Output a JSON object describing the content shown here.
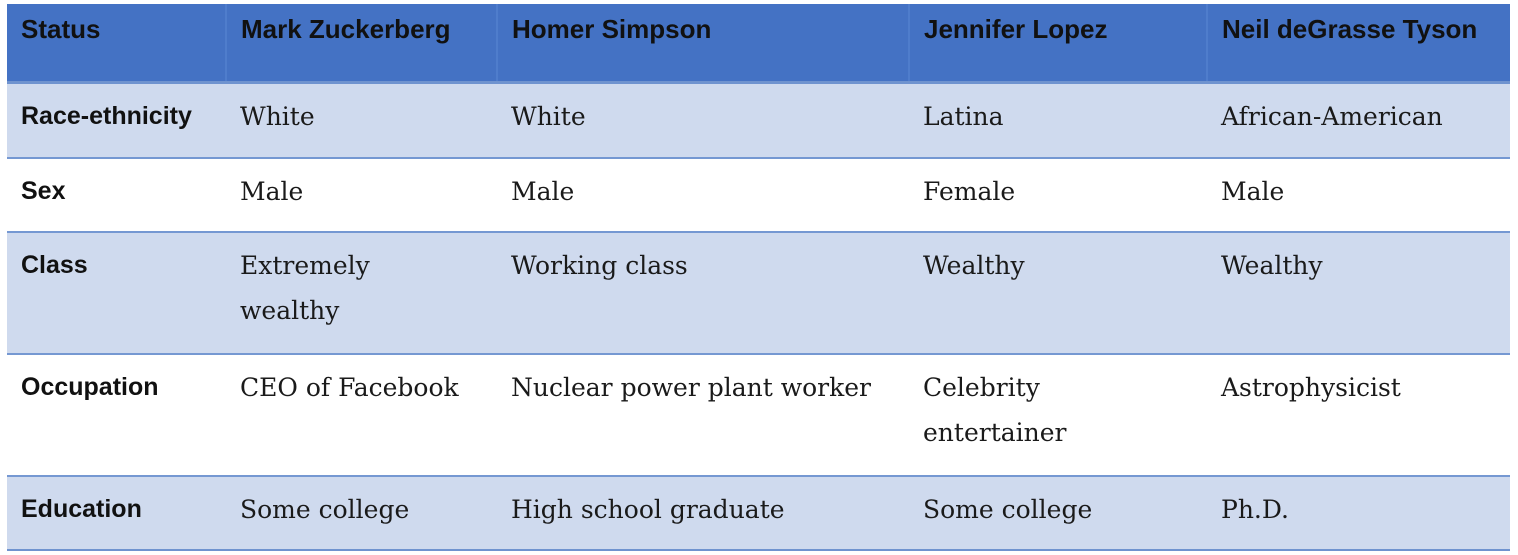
{
  "table": {
    "headers": [
      "Status",
      "Mark Zuckerberg",
      "Homer Simpson",
      "Jennifer Lopez",
      "Neil deGrasse Tyson"
    ],
    "rows": [
      [
        "Race-ethnicity",
        "White",
        "White",
        "Latina",
        "African-American"
      ],
      [
        "Sex",
        "Male",
        "Male",
        "Female",
        "Male"
      ],
      [
        "Class",
        "Extremely wealthy",
        "Working class",
        "Wealthy",
        "Wealthy"
      ],
      [
        "Occupation",
        "CEO of Facebook",
        "Nuclear power plant worker",
        "Celebrity entertainer",
        "Astrophysicist"
      ],
      [
        "Education",
        "Some college",
        "High school graduate",
        "Some college",
        "Ph.D."
      ]
    ]
  },
  "colors": {
    "header_fill": "#4472c4",
    "band_fill": "#cfdaee",
    "plain_fill": "#ffffff",
    "rule": "#7598d2"
  }
}
